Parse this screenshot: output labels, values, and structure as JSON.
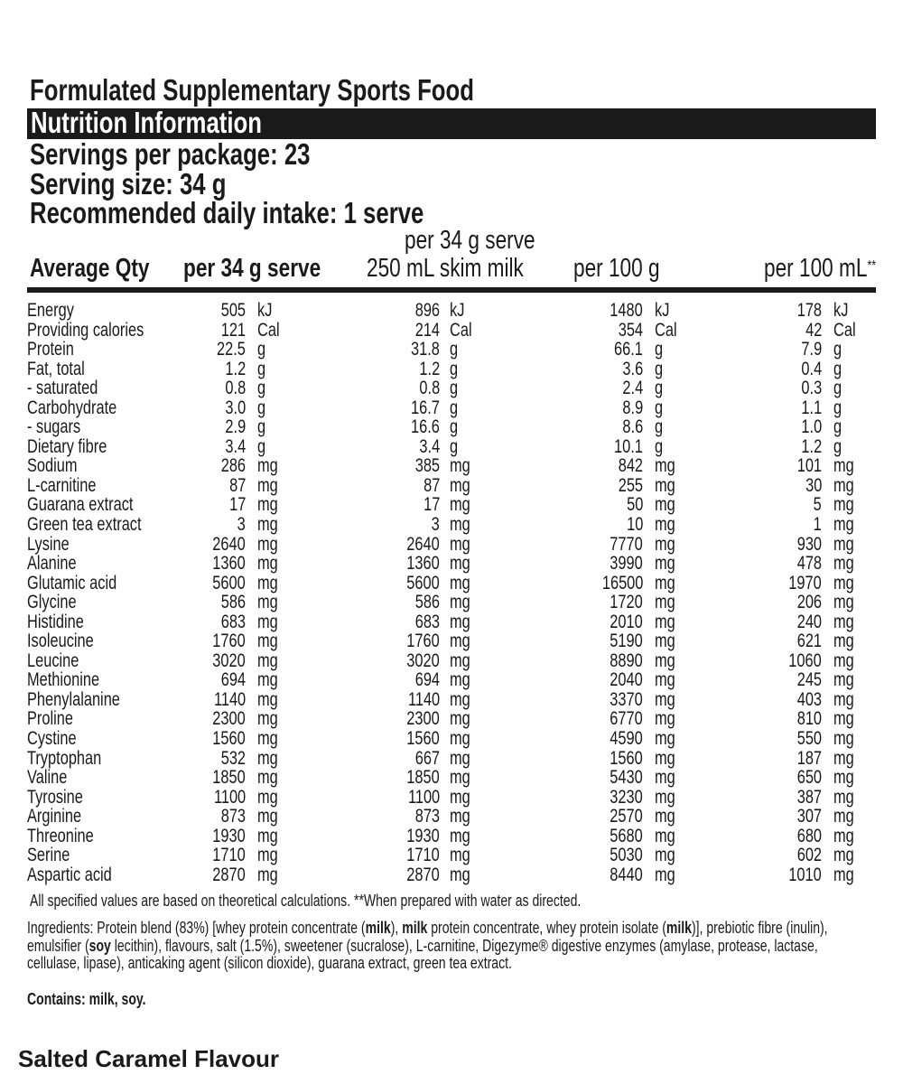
{
  "title": "Formulated Supplementary Sports Food",
  "banner": "Nutrition Information",
  "servings_per_package": "Servings per package: 23",
  "serving_size": "Serving size: 34 g",
  "recommended_daily_intake": "Recommended daily intake: 1 serve",
  "headers": {
    "average_qty": "Average Qty",
    "per_serve": "per 34 g serve",
    "per_serve_milk_line1": "per 34 g serve",
    "per_serve_milk_line2": "250 mL skim milk",
    "per_100g": "per 100 g",
    "per_100ml": "per 100 mL",
    "per_100ml_mark": "**"
  },
  "rows": [
    {
      "name": "Energy",
      "v1": "505",
      "u1": "kJ",
      "v2": "896",
      "u2": "kJ",
      "v3": "1480",
      "u3": "kJ",
      "v4": "178",
      "u4": "kJ"
    },
    {
      "name": "Providing calories",
      "v1": "121",
      "u1": "Cal",
      "v2": "214",
      "u2": "Cal",
      "v3": "354",
      "u3": "Cal",
      "v4": "42",
      "u4": "Cal"
    },
    {
      "name": "Protein",
      "v1": "22.5",
      "u1": "g",
      "v2": "31.8",
      "u2": "g",
      "v3": "66.1",
      "u3": "g",
      "v4": "7.9",
      "u4": "g"
    },
    {
      "name": "Fat, total",
      "v1": "1.2",
      "u1": "g",
      "v2": "1.2",
      "u2": "g",
      "v3": "3.6",
      "u3": "g",
      "v4": "0.4",
      "u4": "g"
    },
    {
      "name": "- saturated",
      "v1": "0.8",
      "u1": "g",
      "v2": "0.8",
      "u2": "g",
      "v3": "2.4",
      "u3": "g",
      "v4": "0.3",
      "u4": "g"
    },
    {
      "name": "Carbohydrate",
      "v1": "3.0",
      "u1": "g",
      "v2": "16.7",
      "u2": "g",
      "v3": "8.9",
      "u3": "g",
      "v4": "1.1",
      "u4": "g"
    },
    {
      "name": "- sugars",
      "v1": "2.9",
      "u1": "g",
      "v2": "16.6",
      "u2": "g",
      "v3": "8.6",
      "u3": "g",
      "v4": "1.0",
      "u4": "g"
    },
    {
      "name": "Dietary fibre",
      "v1": "3.4",
      "u1": "g",
      "v2": "3.4",
      "u2": "g",
      "v3": "10.1",
      "u3": "g",
      "v4": "1.2",
      "u4": "g"
    },
    {
      "name": "Sodium",
      "v1": "286",
      "u1": "mg",
      "v2": "385",
      "u2": "mg",
      "v3": "842",
      "u3": "mg",
      "v4": "101",
      "u4": "mg"
    },
    {
      "name": "L-carnitine",
      "v1": "87",
      "u1": "mg",
      "v2": "87",
      "u2": "mg",
      "v3": "255",
      "u3": "mg",
      "v4": "30",
      "u4": "mg"
    },
    {
      "name": "Guarana extract",
      "v1": "17",
      "u1": "mg",
      "v2": "17",
      "u2": "mg",
      "v3": "50",
      "u3": "mg",
      "v4": "5",
      "u4": "mg"
    },
    {
      "name": "Green tea extract",
      "v1": "3",
      "u1": "mg",
      "v2": "3",
      "u2": "mg",
      "v3": "10",
      "u3": "mg",
      "v4": "1",
      "u4": "mg"
    },
    {
      "name": "Lysine",
      "v1": "2640",
      "u1": "mg",
      "v2": "2640",
      "u2": "mg",
      "v3": "7770",
      "u3": "mg",
      "v4": "930",
      "u4": "mg"
    },
    {
      "name": "Alanine",
      "v1": "1360",
      "u1": "mg",
      "v2": "1360",
      "u2": "mg",
      "v3": "3990",
      "u3": "mg",
      "v4": "478",
      "u4": "mg"
    },
    {
      "name": "Glutamic acid",
      "v1": "5600",
      "u1": "mg",
      "v2": "5600",
      "u2": "mg",
      "v3": "16500",
      "u3": "mg",
      "v4": "1970",
      "u4": "mg"
    },
    {
      "name": "Glycine",
      "v1": "586",
      "u1": "mg",
      "v2": "586",
      "u2": "mg",
      "v3": "1720",
      "u3": "mg",
      "v4": "206",
      "u4": "mg"
    },
    {
      "name": "Histidine",
      "v1": "683",
      "u1": "mg",
      "v2": "683",
      "u2": "mg",
      "v3": "2010",
      "u3": "mg",
      "v4": "240",
      "u4": "mg"
    },
    {
      "name": "Isoleucine",
      "v1": "1760",
      "u1": "mg",
      "v2": "1760",
      "u2": "mg",
      "v3": "5190",
      "u3": "mg",
      "v4": "621",
      "u4": "mg"
    },
    {
      "name": "Leucine",
      "v1": "3020",
      "u1": "mg",
      "v2": "3020",
      "u2": "mg",
      "v3": "8890",
      "u3": "mg",
      "v4": "1060",
      "u4": "mg"
    },
    {
      "name": "Methionine",
      "v1": "694",
      "u1": "mg",
      "v2": "694",
      "u2": "mg",
      "v3": "2040",
      "u3": "mg",
      "v4": "245",
      "u4": "mg"
    },
    {
      "name": "Phenylalanine",
      "v1": "1140",
      "u1": "mg",
      "v2": "1140",
      "u2": "mg",
      "v3": "3370",
      "u3": "mg",
      "v4": "403",
      "u4": "mg"
    },
    {
      "name": "Proline",
      "v1": "2300",
      "u1": "mg",
      "v2": "2300",
      "u2": "mg",
      "v3": "6770",
      "u3": "mg",
      "v4": "810",
      "u4": "mg"
    },
    {
      "name": "Cystine",
      "v1": "1560",
      "u1": "mg",
      "v2": "1560",
      "u2": "mg",
      "v3": "4590",
      "u3": "mg",
      "v4": "550",
      "u4": "mg"
    },
    {
      "name": "Tryptophan",
      "v1": "532",
      "u1": "mg",
      "v2": "667",
      "u2": "mg",
      "v3": "1560",
      "u3": "mg",
      "v4": "187",
      "u4": "mg"
    },
    {
      "name": "Valine",
      "v1": "1850",
      "u1": "mg",
      "v2": "1850",
      "u2": "mg",
      "v3": "5430",
      "u3": "mg",
      "v4": "650",
      "u4": "mg"
    },
    {
      "name": "Tyrosine",
      "v1": "1100",
      "u1": "mg",
      "v2": "1100",
      "u2": "mg",
      "v3": "3230",
      "u3": "mg",
      "v4": "387",
      "u4": "mg"
    },
    {
      "name": "Arginine",
      "v1": "873",
      "u1": "mg",
      "v2": "873",
      "u2": "mg",
      "v3": "2570",
      "u3": "mg",
      "v4": "307",
      "u4": "mg"
    },
    {
      "name": "Threonine",
      "v1": "1930",
      "u1": "mg",
      "v2": "1930",
      "u2": "mg",
      "v3": "5680",
      "u3": "mg",
      "v4": "680",
      "u4": "mg"
    },
    {
      "name": "Serine",
      "v1": "1710",
      "u1": "mg",
      "v2": "1710",
      "u2": "mg",
      "v3": "5030",
      "u3": "mg",
      "v4": "602",
      "u4": "mg"
    },
    {
      "name": "Aspartic acid",
      "v1": "2870",
      "u1": "mg",
      "v2": "2870",
      "u2": "mg",
      "v3": "8440",
      "u3": "mg",
      "v4": "1010",
      "u4": "mg"
    }
  ],
  "footnote": "All specified values are based on theoretical calculations.  **When prepared with water as directed.",
  "ingredients": [
    {
      "text": "Ingredients: Protein blend (83%) [whey protein concentrate (",
      "bold": false
    },
    {
      "text": "milk",
      "bold": true
    },
    {
      "text": "), ",
      "bold": false
    },
    {
      "text": "milk",
      "bold": true
    },
    {
      "text": " protein concentrate, whey protein isolate (",
      "bold": false
    },
    {
      "text": "milk",
      "bold": true
    },
    {
      "text": ")], prebiotic fibre (inulin), emulsifier (",
      "bold": false
    },
    {
      "text": "soy",
      "bold": true
    },
    {
      "text": " lecithin), flavours, salt (1.5%), sweetener (sucralose), L-carnitine, Digezyme® digestive enzymes (amylase, protease, lactase, cellulase, lipase), anticaking agent (silicon dioxide), guarana extract, green tea extract.",
      "bold": false
    }
  ],
  "contains": "Contains: milk, soy.",
  "flavour": "Salted Caramel Flavour",
  "colors": {
    "text": "#1a1a1a",
    "banner_bg": "#1a1a1a",
    "banner_text": "#ffffff",
    "background": "#ffffff"
  }
}
